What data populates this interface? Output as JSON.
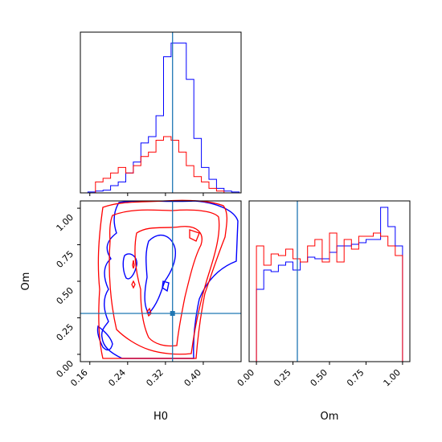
{
  "chart_data": {
    "type": "corner",
    "colors": {
      "series_a": "#0000ff",
      "series_b": "#ff0000",
      "truth": "#1f77b4"
    },
    "parameters": [
      "H0",
      "Om"
    ],
    "truths": {
      "H0": 0.335,
      "Om": 0.28
    },
    "panels": [
      {
        "id": "hist-H0",
        "type": "histogram",
        "parameter": "H0",
        "xlim": [
          0.14,
          0.48
        ],
        "bin_edges": [
          0.14,
          0.156,
          0.172,
          0.188,
          0.204,
          0.22,
          0.236,
          0.252,
          0.268,
          0.284,
          0.3,
          0.316,
          0.332,
          0.348,
          0.364,
          0.38,
          0.396,
          0.412,
          0.428,
          0.444,
          0.46,
          0.476
        ],
        "series": [
          {
            "color_key": "series_a",
            "values": [
              0,
              1,
              2,
              3,
              8,
              12,
              22,
              34,
              55,
              62,
              85,
              150,
              165,
              165,
              125,
              60,
              28,
              15,
              5,
              2,
              1
            ]
          },
          {
            "color_key": "series_b",
            "values": [
              0,
              0,
              12,
              16,
              22,
              28,
              22,
              30,
              40,
              45,
              58,
              62,
              58,
              45,
              30,
              18,
              12,
              5,
              2,
              0,
              0
            ]
          }
        ]
      },
      {
        "id": "contour-Om-vs-H0",
        "type": "contour",
        "x_parameter": "H0",
        "y_parameter": "Om",
        "xlim": [
          0.14,
          0.48
        ],
        "ylim": [
          -0.05,
          1.05
        ],
        "x_ticks": [
          "0.16",
          "0.24",
          "0.32",
          "0.40"
        ],
        "y_ticks": [
          "0.00",
          "0.25",
          "0.50",
          "0.75",
          "1.00"
        ],
        "xlabel": "H0",
        "ylabel": "Om"
      },
      {
        "id": "hist-Om",
        "type": "histogram",
        "parameter": "Om",
        "xlim": [
          -0.05,
          1.05
        ],
        "x_ticks": [
          "0.00",
          "0.25",
          "0.50",
          "0.75",
          "1.00"
        ],
        "xlabel": "Om",
        "bin_edges": [
          0.0,
          0.05,
          0.1,
          0.15,
          0.2,
          0.25,
          0.3,
          0.35,
          0.4,
          0.45,
          0.5,
          0.55,
          0.6,
          0.65,
          0.7,
          0.75,
          0.8,
          0.85,
          0.9,
          0.95,
          1.0
        ],
        "series": [
          {
            "color_key": "series_a",
            "values": [
              0.45,
              0.57,
              0.56,
              0.6,
              0.62,
              0.57,
              0.62,
              0.65,
              0.64,
              0.64,
              0.68,
              0.72,
              0.72,
              0.73,
              0.74,
              0.76,
              0.76,
              0.96,
              0.84,
              0.72
            ]
          },
          {
            "color_key": "series_b",
            "values": [
              0.72,
              0.6,
              0.67,
              0.66,
              0.7,
              0.64,
              0.62,
              0.72,
              0.76,
              0.62,
              0.8,
              0.62,
              0.76,
              0.7,
              0.78,
              0.78,
              0.8,
              0.78,
              0.72,
              0.66
            ]
          }
        ]
      }
    ]
  }
}
